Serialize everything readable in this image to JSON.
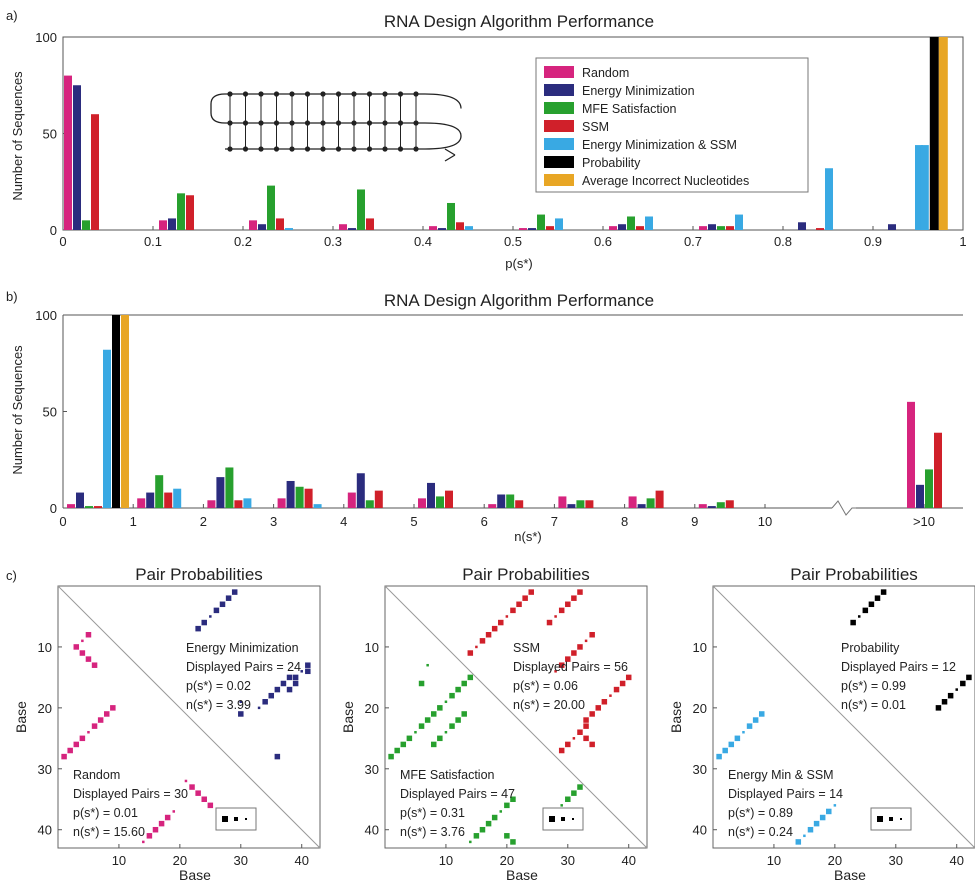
{
  "colors": {
    "Random": "#d6247e",
    "Energy Minimization": "#2b2c7e",
    "MFE Satisfaction": "#27a02e",
    "SSM": "#d0202a",
    "Energy Minimization & SSM": "#39a9e3",
    "Probability": "#000000",
    "Average Incorrect Nucleotides": "#e8a625"
  },
  "chart_data": [
    {
      "type": "bar",
      "panel_label": "a)",
      "title": "RNA Design Algorithm Performance",
      "xlabel": "p(s*)",
      "ylabel": "Number of Sequences",
      "ylim": [
        0,
        100
      ],
      "xlim": [
        0,
        1
      ],
      "xticks": [
        "0",
        "0.1",
        "0.2",
        "0.3",
        "0.4",
        "0.5",
        "0.6",
        "0.7",
        "0.8",
        "0.9",
        "1"
      ],
      "yticks": [
        "0",
        "50",
        "100"
      ],
      "legend_position": "top-right",
      "legend": [
        "Random",
        "Energy Minimization",
        "MFE Satisfaction",
        "SSM",
        "Energy Minimization & SSM",
        "Probability",
        "Average Incorrect Nucleotides"
      ],
      "groups": [
        {
          "x": 0.0,
          "values": {
            "Random": 80,
            "Energy Minimization": 75,
            "MFE Satisfaction": 5,
            "SSM": 60,
            "Energy Minimization & SSM": 0
          }
        },
        {
          "x": 0.1,
          "values": {
            "Random": 5,
            "Energy Minimization": 6,
            "MFE Satisfaction": 19,
            "SSM": 18,
            "Energy Minimization & SSM": 0
          }
        },
        {
          "x": 0.2,
          "values": {
            "Random": 5,
            "Energy Minimization": 3,
            "MFE Satisfaction": 23,
            "SSM": 6,
            "Energy Minimization & SSM": 1
          }
        },
        {
          "x": 0.3,
          "values": {
            "Random": 3,
            "Energy Minimization": 1,
            "MFE Satisfaction": 21,
            "SSM": 6,
            "Energy Minimization & SSM": 0
          }
        },
        {
          "x": 0.4,
          "values": {
            "Random": 2,
            "Energy Minimization": 1,
            "MFE Satisfaction": 14,
            "SSM": 4,
            "Energy Minimization & SSM": 2
          }
        },
        {
          "x": 0.5,
          "values": {
            "Random": 1,
            "Energy Minimization": 1,
            "MFE Satisfaction": 8,
            "SSM": 2,
            "Energy Minimization & SSM": 6
          }
        },
        {
          "x": 0.6,
          "values": {
            "Random": 2,
            "Energy Minimization": 3,
            "MFE Satisfaction": 7,
            "SSM": 2,
            "Energy Minimization & SSM": 7
          }
        },
        {
          "x": 0.7,
          "values": {
            "Random": 2,
            "Energy Minimization": 3,
            "MFE Satisfaction": 2,
            "SSM": 2,
            "Energy Minimization & SSM": 8
          }
        },
        {
          "x": 0.8,
          "values": {
            "Random": 0,
            "Energy Minimization": 4,
            "MFE Satisfaction": 0,
            "SSM": 1,
            "Energy Minimization & SSM": 32
          }
        },
        {
          "x": 0.9,
          "values": {
            "Random": 0,
            "Energy Minimization": 3,
            "MFE Satisfaction": 0,
            "SSM": 0,
            "Energy Minimization & SSM": 44,
            "Probability": 100,
            "Average Incorrect Nucleotides": 100
          }
        }
      ]
    },
    {
      "type": "bar",
      "panel_label": "b)",
      "title": "RNA Design Algorithm Performance",
      "xlabel": "n(s*)",
      "ylabel": "Number of Sequences",
      "ylim": [
        0,
        100
      ],
      "xticks": [
        "0",
        "1",
        "2",
        "3",
        "4",
        "5",
        "6",
        "7",
        "8",
        "9",
        "10",
        ">10"
      ],
      "yticks": [
        "0",
        "50",
        "100"
      ],
      "axis_break": "between 10 and >10",
      "groups": [
        {
          "x": "0",
          "values": {
            "Random": 2,
            "Energy Minimization": 8,
            "MFE Satisfaction": 1,
            "SSM": 1,
            "Energy Minimization & SSM": 82,
            "Probability": 100,
            "Average Incorrect Nucleotides": 100
          }
        },
        {
          "x": "1",
          "values": {
            "Random": 5,
            "Energy Minimization": 8,
            "MFE Satisfaction": 17,
            "SSM": 8,
            "Energy Minimization & SSM": 10
          }
        },
        {
          "x": "2",
          "values": {
            "Random": 4,
            "Energy Minimization": 16,
            "MFE Satisfaction": 21,
            "SSM": 4,
            "Energy Minimization & SSM": 5
          }
        },
        {
          "x": "3",
          "values": {
            "Random": 5,
            "Energy Minimization": 14,
            "MFE Satisfaction": 11,
            "SSM": 10,
            "Energy Minimization & SSM": 2
          }
        },
        {
          "x": "4",
          "values": {
            "Random": 8,
            "Energy Minimization": 18,
            "MFE Satisfaction": 4,
            "SSM": 9,
            "Energy Minimization & SSM": 0
          }
        },
        {
          "x": "5",
          "values": {
            "Random": 5,
            "Energy Minimization": 13,
            "MFE Satisfaction": 6,
            "SSM": 9,
            "Energy Minimization & SSM": 0
          }
        },
        {
          "x": "6",
          "values": {
            "Random": 2,
            "Energy Minimization": 7,
            "MFE Satisfaction": 7,
            "SSM": 4,
            "Energy Minimization & SSM": 0
          }
        },
        {
          "x": "7",
          "values": {
            "Random": 6,
            "Energy Minimization": 2,
            "MFE Satisfaction": 4,
            "SSM": 4,
            "Energy Minimization & SSM": 0
          }
        },
        {
          "x": "8",
          "values": {
            "Random": 6,
            "Energy Minimization": 2,
            "MFE Satisfaction": 5,
            "SSM": 9,
            "Energy Minimization & SSM": 0
          }
        },
        {
          "x": "9",
          "values": {
            "Random": 2,
            "Energy Minimization": 1,
            "MFE Satisfaction": 3,
            "SSM": 4,
            "Energy Minimization & SSM": 0
          }
        },
        {
          "x": ">10",
          "values": {
            "Random": 55,
            "Energy Minimization": 12,
            "MFE Satisfaction": 20,
            "SSM": 39,
            "Energy Minimization & SSM": 0
          }
        }
      ]
    },
    {
      "type": "heatmap",
      "panel_label": "c)",
      "title": "Pair Probabilities",
      "xlabel": "Base",
      "ylabel": "Base",
      "xticks": [
        "10",
        "20",
        "30",
        "40"
      ],
      "yticks": [
        "10",
        "20",
        "30",
        "40"
      ],
      "upper": {
        "name": "Energy Minimization",
        "lines": [
          "Energy Minimization",
          "Displayed Pairs = 24",
          "p(s*) = 0.02",
          "n(s*) = 3.99"
        ]
      },
      "lower": {
        "name": "Random",
        "lines": [
          "Random",
          "Displayed Pairs = 30",
          "p(s*) = 0.01",
          "n(s*) = 15.60"
        ]
      }
    },
    {
      "type": "heatmap",
      "title": "Pair Probabilities",
      "xlabel": "Base",
      "ylabel": "Base",
      "xticks": [
        "10",
        "20",
        "30",
        "40"
      ],
      "yticks": [
        "10",
        "20",
        "30",
        "40"
      ],
      "upper": {
        "name": "SSM",
        "lines": [
          "SSM",
          "Displayed Pairs = 56",
          "p(s*) = 0.06",
          "n(s*) = 20.00"
        ]
      },
      "lower": {
        "name": "MFE Satisfaction",
        "lines": [
          "MFE Satisfaction",
          "Displayed Pairs = 47",
          "p(s*) = 0.31",
          "n(s*) = 3.76"
        ]
      }
    },
    {
      "type": "heatmap",
      "title": "Pair Probabilities",
      "xlabel": "Base",
      "ylabel": "Base",
      "xticks": [
        "10",
        "20",
        "30",
        "40"
      ],
      "yticks": [
        "10",
        "20",
        "30",
        "40"
      ],
      "upper": {
        "name": "Probability",
        "lines": [
          "Probability",
          "Displayed Pairs = 12",
          "p(s*) = 0.99",
          "n(s*) = 0.01"
        ]
      },
      "lower": {
        "name": "Energy Minimization & SSM",
        "lines": [
          "Energy Min & SSM",
          "Displayed Pairs = 14",
          "p(s*) = 0.89",
          "n(s*) = 0.24"
        ]
      }
    }
  ]
}
